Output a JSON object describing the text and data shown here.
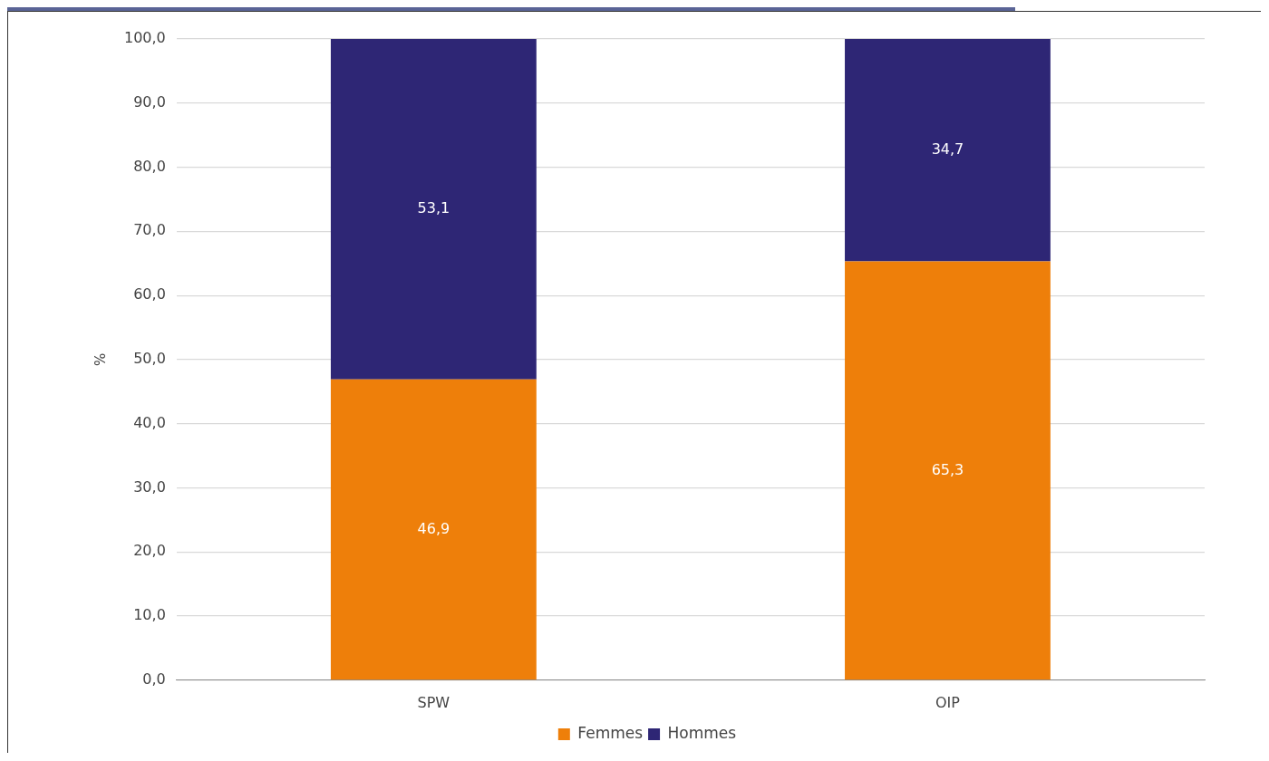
{
  "chart_data": {
    "type": "bar",
    "ylabel": "%",
    "categories": [
      "SPW",
      "OIP"
    ],
    "stacked": true,
    "series": [
      {
        "name": "Femmes",
        "color": "#ee7f0a",
        "values": [
          46.9,
          65.3
        ],
        "value_labels": [
          "46,9",
          "65,3"
        ]
      },
      {
        "name": "Hommes",
        "color": "#2e2675",
        "values": [
          53.1,
          34.7
        ],
        "value_labels": [
          "53,1",
          "34,7"
        ]
      }
    ],
    "ylim": [
      0,
      100
    ],
    "yticks": [
      {
        "value": 0,
        "label": "0,0"
      },
      {
        "value": 10,
        "label": "10,0"
      },
      {
        "value": 20,
        "label": "20,0"
      },
      {
        "value": 30,
        "label": "30,0"
      },
      {
        "value": 40,
        "label": "40,0"
      },
      {
        "value": 50,
        "label": "50,0"
      },
      {
        "value": 60,
        "label": "60,0"
      },
      {
        "value": 70,
        "label": "70,0"
      },
      {
        "value": 80,
        "label": "80,0"
      },
      {
        "value": 90,
        "label": "90,0"
      },
      {
        "value": 100,
        "label": "100,0"
      }
    ],
    "grid": "y",
    "legend": "bottom"
  }
}
